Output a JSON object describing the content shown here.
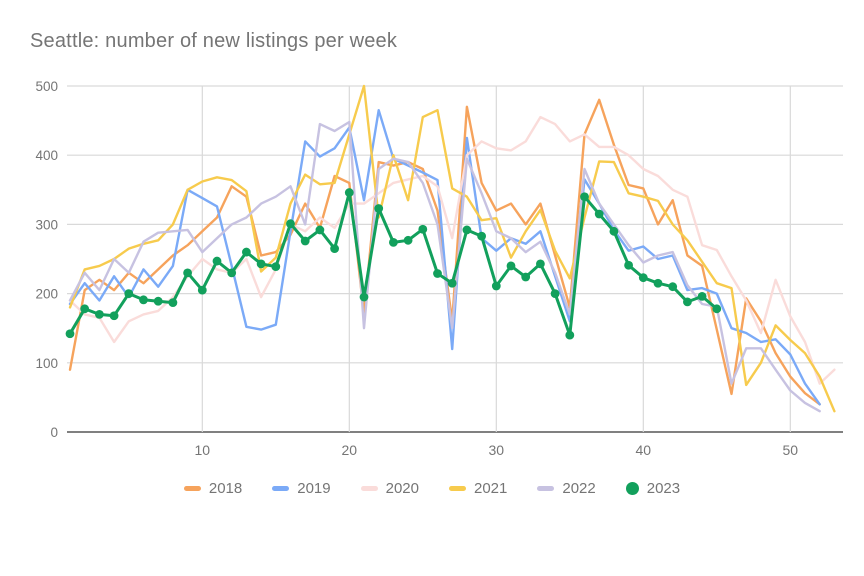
{
  "title": "Seattle: number of new listings per week",
  "colors": {
    "title_text": "#757575",
    "axis_labels": "#757575",
    "gridline": "#d9d9d9",
    "baseline": "#6e6e6e",
    "background": "#ffffff"
  },
  "chart_data": {
    "type": "line",
    "title": "Seattle: number of new listings per week",
    "xlabel": "",
    "ylabel": "",
    "x_axis": {
      "ticks": [
        10,
        20,
        30,
        40,
        50
      ],
      "start_week": 1,
      "max_week": 53
    },
    "y_axis": {
      "ticks": [
        0,
        100,
        200,
        300,
        400,
        500
      ],
      "range": [
        0,
        500
      ]
    },
    "grid": true,
    "legend_position": "bottom",
    "series": [
      {
        "name": "2018",
        "color": "#F6A35C",
        "style": "line",
        "values": [
          90,
          205,
          220,
          205,
          230,
          215,
          235,
          255,
          270,
          290,
          310,
          355,
          340,
          255,
          260,
          285,
          330,
          295,
          370,
          360,
          170,
          390,
          385,
          390,
          380,
          320,
          160,
          470,
          360,
          320,
          330,
          300,
          330,
          255,
          180,
          430,
          480,
          415,
          357,
          352,
          300,
          335,
          255,
          240,
          148,
          55,
          193,
          160,
          114,
          80,
          56,
          40
        ]
      },
      {
        "name": "2019",
        "color": "#7BAAF7",
        "style": "line",
        "values": [
          185,
          215,
          190,
          225,
          195,
          235,
          210,
          240,
          350,
          338,
          326,
          240,
          152,
          148,
          155,
          290,
          420,
          398,
          410,
          440,
          335,
          465,
          395,
          385,
          375,
          364,
          120,
          425,
          280,
          262,
          280,
          272,
          290,
          225,
          160,
          365,
          330,
          292,
          262,
          268,
          250,
          255,
          205,
          208,
          200,
          150,
          143,
          130,
          134,
          112,
          70,
          40
        ]
      },
      {
        "name": "2020",
        "color": "#FADCDA",
        "style": "line",
        "values": [
          190,
          170,
          165,
          130,
          160,
          170,
          175,
          195,
          225,
          250,
          235,
          230,
          250,
          195,
          235,
          300,
          290,
          310,
          295,
          330,
          330,
          345,
          360,
          365,
          370,
          355,
          280,
          400,
          420,
          410,
          407,
          420,
          455,
          445,
          420,
          430,
          412,
          412,
          400,
          380,
          370,
          350,
          340,
          270,
          263,
          225,
          190,
          143,
          220,
          167,
          130,
          70,
          90
        ]
      },
      {
        "name": "2021",
        "color": "#F7CB4D",
        "style": "line",
        "values": [
          180,
          235,
          240,
          250,
          265,
          272,
          277,
          300,
          350,
          362,
          368,
          364,
          348,
          232,
          252,
          330,
          372,
          358,
          360,
          430,
          500,
          310,
          400,
          335,
          455,
          465,
          352,
          340,
          306,
          309,
          252,
          290,
          321,
          262,
          222,
          310,
          391,
          390,
          345,
          340,
          334,
          300,
          277,
          246,
          215,
          208,
          68,
          100,
          154,
          133,
          114,
          80,
          30
        ]
      },
      {
        "name": "2022",
        "color": "#C7C2E1",
        "style": "line",
        "values": [
          190,
          230,
          205,
          250,
          230,
          275,
          288,
          290,
          292,
          260,
          280,
          300,
          310,
          330,
          340,
          355,
          300,
          445,
          435,
          448,
          150,
          380,
          395,
          390,
          360,
          300,
          150,
          395,
          345,
          290,
          280,
          260,
          275,
          230,
          170,
          380,
          330,
          300,
          270,
          245,
          255,
          260,
          212,
          185,
          181,
          70,
          121,
          121,
          90,
          60,
          42,
          30
        ]
      },
      {
        "name": "2023",
        "color": "#12A05C",
        "style": "line+points",
        "values": [
          142,
          178,
          170,
          168,
          200,
          191,
          189,
          187,
          230,
          205,
          247,
          230,
          260,
          243,
          239,
          301,
          276,
          292,
          265,
          346,
          195,
          323,
          274,
          277,
          293,
          229,
          215,
          292,
          283,
          211,
          240,
          224,
          243,
          200,
          140,
          340,
          315,
          290,
          241,
          223,
          215,
          210,
          188,
          196,
          178
        ]
      }
    ]
  },
  "legend": {
    "items": [
      {
        "label": "2018"
      },
      {
        "label": "2019"
      },
      {
        "label": "2020"
      },
      {
        "label": "2021"
      },
      {
        "label": "2022"
      },
      {
        "label": "2023"
      }
    ]
  }
}
